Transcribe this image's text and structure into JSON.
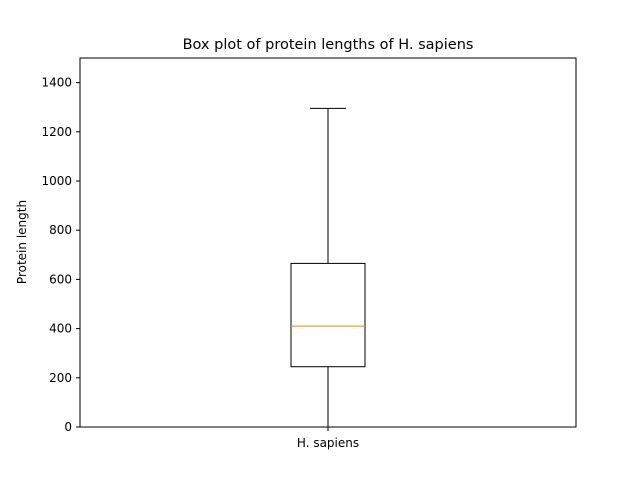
{
  "chart_data": {
    "type": "box",
    "title": "Box plot of protein lengths of H. sapiens",
    "xlabel": "",
    "ylabel": "Protein length",
    "categories": [
      "H. sapiens"
    ],
    "series": [
      {
        "name": "H. sapiens",
        "whisker_low": 0,
        "q1": 245,
        "median": 410,
        "q3": 665,
        "whisker_high": 1295
      }
    ],
    "ylim": [
      0,
      1500
    ],
    "yticks": [
      0,
      200,
      400,
      600,
      800,
      1000,
      1200,
      1400
    ],
    "grid": false,
    "legend": "none",
    "colors": {
      "box": "#000000",
      "median": "#ff7f0e",
      "whisker": "#000000"
    }
  }
}
